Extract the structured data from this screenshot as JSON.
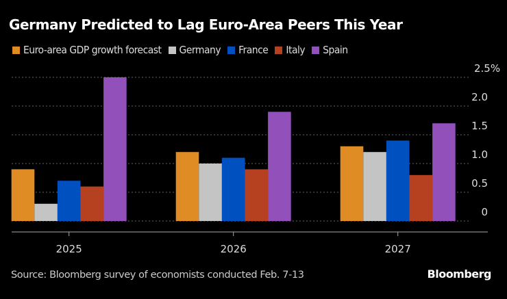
{
  "chart_data": {
    "type": "bar",
    "title": "Germany Predicted to Lag Euro-Area Peers This Year",
    "xlabel": "",
    "ylabel": "",
    "categories": [
      "2025",
      "2026",
      "2027"
    ],
    "series": [
      {
        "name": "Euro-area GDP growth forecast",
        "color": "#E08C25",
        "values": [
          0.9,
          1.2,
          1.3
        ]
      },
      {
        "name": "Germany",
        "color": "#C4C4C4",
        "values": [
          0.3,
          1.0,
          1.2
        ]
      },
      {
        "name": "France",
        "color": "#0050C0",
        "values": [
          0.7,
          1.1,
          1.4
        ]
      },
      {
        "name": "Italy",
        "color": "#B54120",
        "values": [
          0.6,
          0.9,
          0.8
        ]
      },
      {
        "name": "Spain",
        "color": "#9150BA",
        "values": [
          2.5,
          1.9,
          1.7
        ]
      }
    ],
    "yticks": [
      {
        "value": 0,
        "label": "0"
      },
      {
        "value": 0.5,
        "label": "0.5"
      },
      {
        "value": 1.0,
        "label": "1.0"
      },
      {
        "value": 1.5,
        "label": "1.5"
      },
      {
        "value": 2.0,
        "label": "2.0"
      },
      {
        "value": 2.5,
        "label": "2.5%"
      }
    ],
    "ylim": [
      0,
      2.5
    ],
    "grid": true,
    "legend_position": "top-left",
    "source": "Source: Bloomberg survey of economists conducted Feb. 7-13",
    "brand": "Bloomberg"
  }
}
